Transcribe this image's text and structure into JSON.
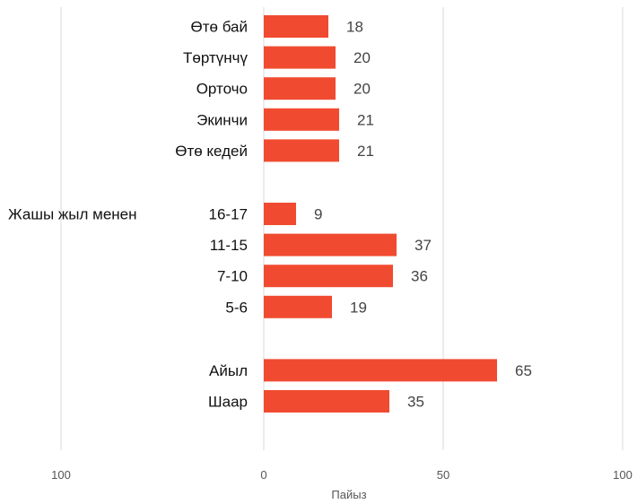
{
  "chart_data": {
    "type": "bar",
    "orientation": "horizontal",
    "xlabel": "Пайыз",
    "xlim": [
      0,
      100
    ],
    "grid": true,
    "bar_color": "#F04B30",
    "tick_labels": [
      "100",
      "0",
      "50",
      "100"
    ],
    "groups": [
      {
        "label": "",
        "categories": [
          "Өтө бай",
          "Төртүнчү",
          "Орточо",
          "Экинчи",
          "Өтө кедей"
        ],
        "values": [
          18,
          20,
          20,
          21,
          21
        ]
      },
      {
        "label": "Жашы жыл менен",
        "categories": [
          "16-17",
          "11-15",
          "7-10",
          "5-6"
        ],
        "values": [
          9,
          37,
          36,
          19
        ]
      },
      {
        "label": "",
        "categories": [
          "Айыл",
          "Шаар"
        ],
        "values": [
          65,
          35
        ]
      }
    ]
  }
}
